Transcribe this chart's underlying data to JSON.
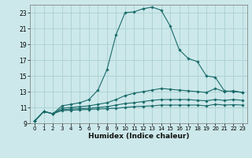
{
  "xlabel": "Humidex (Indice chaleur)",
  "bg_color": "#cce8ea",
  "grid_color": "#aacfd2",
  "line_color": "#1a6b6b",
  "xlim": [
    -0.5,
    23.5
  ],
  "ylim": [
    9,
    24
  ],
  "xticks": [
    0,
    1,
    2,
    3,
    4,
    5,
    6,
    7,
    8,
    9,
    10,
    11,
    12,
    13,
    14,
    15,
    16,
    17,
    18,
    19,
    20,
    21,
    22,
    23
  ],
  "yticks": [
    9,
    11,
    13,
    15,
    17,
    19,
    21,
    23
  ],
  "series": [
    [
      9.3,
      10.5,
      10.2,
      11.2,
      11.4,
      11.6,
      12.0,
      13.2,
      15.8,
      20.2,
      23.0,
      23.1,
      23.5,
      23.7,
      23.3,
      21.3,
      18.3,
      17.2,
      16.8,
      15.0,
      14.8,
      13.1,
      13.0,
      12.9
    ],
    [
      9.3,
      10.5,
      10.2,
      10.9,
      11.0,
      11.1,
      11.2,
      11.4,
      11.6,
      12.0,
      12.5,
      12.8,
      13.0,
      13.2,
      13.4,
      13.3,
      13.2,
      13.1,
      13.0,
      12.9,
      13.4,
      13.0,
      13.1,
      12.9
    ],
    [
      9.3,
      10.5,
      10.2,
      10.7,
      10.8,
      10.85,
      10.9,
      11.0,
      11.1,
      11.3,
      11.5,
      11.6,
      11.75,
      11.9,
      12.0,
      12.0,
      12.0,
      12.0,
      11.9,
      11.85,
      12.0,
      11.9,
      12.0,
      11.9
    ],
    [
      9.3,
      10.5,
      10.2,
      10.6,
      10.65,
      10.7,
      10.75,
      10.8,
      10.85,
      10.9,
      11.0,
      11.1,
      11.15,
      11.2,
      11.3,
      11.3,
      11.3,
      11.3,
      11.3,
      11.2,
      11.4,
      11.3,
      11.35,
      11.3
    ]
  ]
}
